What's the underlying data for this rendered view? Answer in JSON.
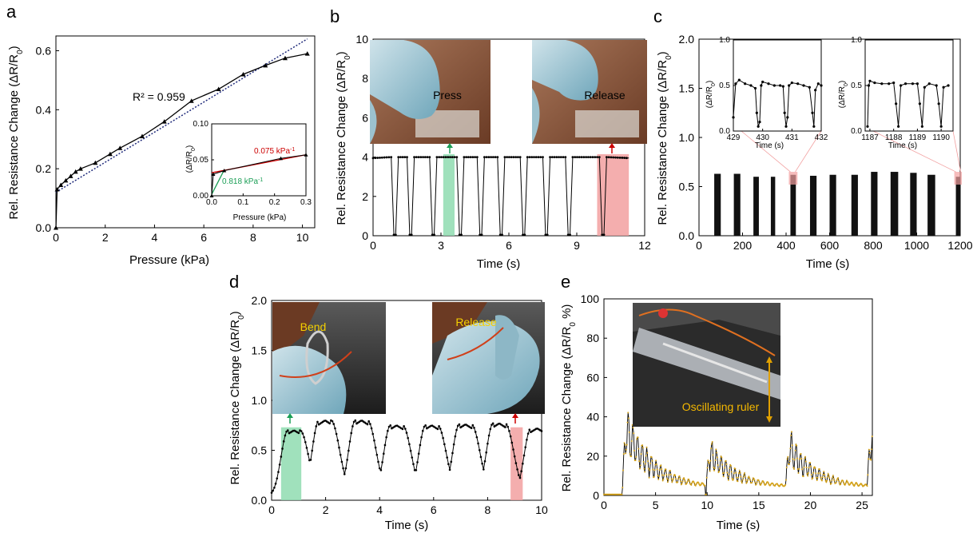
{
  "panel_labels": [
    "a",
    "b",
    "c",
    "d",
    "e"
  ],
  "photo_icons": [
    "finger-press-photo",
    "finger-release-photo",
    "finger-bend-photo",
    "finger-release-bent-photo",
    "oscillating-ruler-photo"
  ],
  "colors": {
    "green_highlight": "#8fdcb0",
    "red_highlight": "#f2a0a0",
    "fit_dotted": "#1f2a7a",
    "red_fit": "#cc0000",
    "green_fit": "#1a9e55",
    "series_e_marker": "#d4a21a",
    "annotation_yellow": "#f5d000",
    "ruler_arrow": "#e0a000"
  },
  "chart_data": [
    {
      "id": "a",
      "type": "line",
      "xlabel": "Pressure (kPa)",
      "ylabel": "Rel. Resistance Change (ΔR/R",
      "ylabel_sub": "0",
      "ylabel_end": ")",
      "xlim": [
        0,
        10.5
      ],
      "ylim": [
        0,
        0.65
      ],
      "xticks": [
        0,
        2,
        4,
        6,
        8,
        10
      ],
      "yticks": [
        0.0,
        0.2,
        0.4,
        0.6
      ],
      "ytick_labels": [
        "0.0",
        "0.2",
        "0.4",
        "0.6"
      ],
      "annotation": "R² = 0.959",
      "x": [
        0,
        0.05,
        0.2,
        0.4,
        0.6,
        0.8,
        1.0,
        1.6,
        2.2,
        2.6,
        3.5,
        4.4,
        5.5,
        6.6,
        7.6,
        8.5,
        9.3,
        10.2
      ],
      "y": [
        0.0,
        0.13,
        0.145,
        0.16,
        0.175,
        0.19,
        0.2,
        0.22,
        0.25,
        0.27,
        0.31,
        0.36,
        0.43,
        0.47,
        0.52,
        0.55,
        0.575,
        0.59
      ],
      "fit_line": {
        "x": [
          0,
          10.2
        ],
        "y": [
          0.12,
          0.64
        ]
      },
      "inset": {
        "xlabel": "Pressure (kPa)",
        "ylabel": "(ΔR/R",
        "ylabel_sub": "0",
        "ylabel_end": ")",
        "xlim": [
          0,
          0.3
        ],
        "ylim": [
          0,
          0.1
        ],
        "xticks": [
          0.0,
          0.1,
          0.2,
          0.3
        ],
        "xtick_labels": [
          "0.0",
          "0.1",
          "0.2",
          "0.3"
        ],
        "yticks": [
          0.0,
          0.05,
          0.1
        ],
        "ytick_labels": [
          "0.00",
          "0.05",
          "0.10"
        ],
        "x": [
          0,
          0.005,
          0.04,
          0.22,
          0.3
        ],
        "y": [
          0.0,
          0.03,
          0.035,
          0.052,
          0.057
        ],
        "red_fit": {
          "x": [
            0,
            0.3
          ],
          "y": [
            0.032,
            0.057
          ],
          "label": "0.075 kPa",
          "label_sup": "-1"
        },
        "green_fit": {
          "x": [
            0,
            0.04
          ],
          "y": [
            0.002,
            0.036
          ],
          "label": "0.818 kPa",
          "label_sup": "-1"
        }
      }
    },
    {
      "id": "b",
      "type": "line",
      "xlabel": "Time (s)",
      "ylabel": "Rel. Resistance Change (ΔR/R",
      "ylabel_sub": "0",
      "ylabel_end": ")",
      "xlim": [
        0,
        12
      ],
      "ylim": [
        0,
        10
      ],
      "xticks": [
        0,
        3,
        6,
        9,
        12
      ],
      "yticks": [
        0,
        2,
        4,
        6,
        8,
        10
      ],
      "high": 3.95,
      "low": 0.05,
      "segments": [
        [
          0.8,
          4.0,
          0.05
        ],
        [
          1.0,
          0.05,
          4.0
        ],
        [
          1.5,
          4.0,
          0.05
        ],
        [
          1.7,
          0.05,
          4.0
        ],
        [
          2.5,
          4.0,
          0.05
        ],
        [
          2.7,
          0.05,
          4.0
        ],
        [
          3.7,
          4.0,
          0.05
        ],
        [
          3.9,
          0.05,
          4.0
        ],
        [
          4.6,
          4.0,
          0.05
        ],
        [
          4.8,
          0.05,
          4.0
        ],
        [
          5.5,
          4.0,
          0.05
        ],
        [
          5.7,
          0.05,
          4.0
        ],
        [
          6.5,
          4.0,
          0.05
        ],
        [
          6.7,
          0.05,
          4.0
        ],
        [
          7.5,
          4.0,
          0.05
        ],
        [
          7.7,
          0.05,
          4.0
        ],
        [
          8.5,
          4.0,
          0.05
        ],
        [
          8.7,
          0.05,
          4.0
        ],
        [
          10.0,
          4.0,
          0.05
        ],
        [
          10.2,
          0.05,
          4.0
        ]
      ],
      "x_end": 11.3,
      "highlights": [
        {
          "x0": 3.1,
          "x1": 3.6,
          "color": "green"
        },
        {
          "x0": 9.9,
          "x1": 11.3,
          "color": "red"
        }
      ],
      "photo_labels": [
        "Press",
        "Release"
      ]
    },
    {
      "id": "c",
      "type": "scatter",
      "xlabel": "Time (s)",
      "ylabel": "Rel. Resistance Change (ΔR/R",
      "ylabel_sub": "0",
      "ylabel_end": ")",
      "xlim": [
        0,
        1200
      ],
      "ylim": [
        0,
        2
      ],
      "xticks": [
        0,
        200,
        400,
        600,
        800,
        1000,
        1200
      ],
      "yticks": [
        0.0,
        0.5,
        1.0,
        1.5,
        2.0
      ],
      "ytick_labels": [
        "0.0",
        "0.5",
        "1.0",
        "1.5",
        "2.0"
      ],
      "bursts": [
        {
          "x0": 70,
          "x1": 100,
          "top": 0.63
        },
        {
          "x0": 160,
          "x1": 190,
          "top": 0.63
        },
        {
          "x0": 250,
          "x1": 275,
          "top": 0.6
        },
        {
          "x0": 330,
          "x1": 350,
          "top": 0.6
        },
        {
          "x0": 420,
          "x1": 445,
          "top": 0.62
        },
        {
          "x0": 510,
          "x1": 540,
          "top": 0.61
        },
        {
          "x0": 600,
          "x1": 630,
          "top": 0.62
        },
        {
          "x0": 700,
          "x1": 730,
          "top": 0.62
        },
        {
          "x0": 790,
          "x1": 820,
          "top": 0.65
        },
        {
          "x0": 880,
          "x1": 915,
          "top": 0.65
        },
        {
          "x0": 970,
          "x1": 1000,
          "top": 0.64
        },
        {
          "x0": 1050,
          "x1": 1085,
          "top": 0.62
        },
        {
          "x0": 1180,
          "x1": 1200,
          "top": 0.6
        }
      ],
      "highlights": [
        {
          "x0": 420,
          "x1": 445
        },
        {
          "x0": 1180,
          "x1": 1200
        }
      ],
      "insets": [
        {
          "xlabel": "Time (s)",
          "ylabel": "(ΔR/R",
          "ylabel_sub": "0",
          "ylabel_end": ")",
          "xlim": [
            429,
            432
          ],
          "ylim": [
            0,
            1
          ],
          "xticks": [
            429,
            430,
            431,
            432
          ],
          "yticks": [
            0.0,
            0.5,
            1.0
          ],
          "ytick_labels": [
            "0.0",
            "0.5",
            "1.0"
          ],
          "x": [
            429.0,
            429.08,
            429.2,
            429.4,
            429.6,
            429.75,
            429.8,
            429.85,
            429.9,
            429.95,
            430.0,
            430.2,
            430.4,
            430.6,
            430.7,
            430.75,
            430.8,
            430.85,
            430.9,
            431.0,
            431.2,
            431.4,
            431.6,
            431.7,
            431.75,
            431.8,
            431.9,
            432.0
          ],
          "y": [
            0.15,
            0.52,
            0.56,
            0.52,
            0.5,
            0.47,
            0.2,
            0.05,
            0.1,
            0.5,
            0.54,
            0.52,
            0.5,
            0.5,
            0.49,
            0.2,
            0.05,
            0.15,
            0.5,
            0.53,
            0.52,
            0.5,
            0.48,
            0.2,
            0.05,
            0.45,
            0.52,
            0.5
          ]
        },
        {
          "xlabel": "Time (s)",
          "ylabel": "(ΔR/R",
          "ylabel_sub": "0",
          "ylabel_end": ")",
          "xlim": [
            1186.8,
            1190.5
          ],
          "ylim": [
            0,
            1
          ],
          "xticks": [
            1187,
            1188,
            1189,
            1190
          ],
          "yticks": [
            0.0,
            0.5,
            1.0
          ],
          "ytick_labels": [
            "0.0",
            "0.5",
            "1.0"
          ],
          "x": [
            1186.9,
            1186.95,
            1187.0,
            1187.2,
            1187.5,
            1187.8,
            1188.0,
            1188.1,
            1188.2,
            1188.3,
            1188.5,
            1188.8,
            1189.0,
            1189.1,
            1189.2,
            1189.3,
            1189.5,
            1189.8,
            1189.9,
            1190.0,
            1190.1,
            1190.3
          ],
          "y": [
            0.05,
            0.5,
            0.55,
            0.53,
            0.52,
            0.52,
            0.53,
            0.3,
            0.05,
            0.5,
            0.52,
            0.52,
            0.52,
            0.3,
            0.05,
            0.48,
            0.52,
            0.5,
            0.3,
            0.05,
            0.48,
            0.5
          ]
        }
      ]
    },
    {
      "id": "d",
      "type": "line",
      "xlabel": "Time (s)",
      "ylabel": "Rel. Resistance Change (ΔR/R",
      "ylabel_sub": "0",
      "ylabel_end": ")",
      "xlim": [
        0,
        10
      ],
      "ylim": [
        0,
        2
      ],
      "xticks": [
        0,
        2,
        4,
        6,
        8,
        10
      ],
      "yticks": [
        0.0,
        0.5,
        1.0,
        1.5,
        2.0
      ],
      "ytick_labels": [
        "0.0",
        "0.5",
        "1.0",
        "1.5",
        "2.0"
      ],
      "peaks": [
        0.9,
        2.05,
        3.4,
        4.7,
        6.0,
        7.25,
        8.5,
        9.9
      ],
      "peak_values": [
        0.7,
        0.8,
        0.8,
        0.75,
        0.75,
        0.76,
        0.77,
        0.72
      ],
      "highlights": [
        {
          "x0": 0.35,
          "x1": 1.1,
          "color": "green"
        },
        {
          "x0": 8.85,
          "x1": 9.3,
          "color": "red"
        }
      ],
      "photo_labels": [
        "Bend",
        "Release"
      ]
    },
    {
      "id": "e",
      "type": "line",
      "xlabel": "Time (s)",
      "ylabel": "Rel. Resistance Change (ΔR/R",
      "ylabel_sub": "0",
      "ylabel_end": " %)",
      "xlim": [
        0,
        26
      ],
      "ylim": [
        0,
        100
      ],
      "xticks": [
        0,
        5,
        10,
        15,
        20,
        25
      ],
      "yticks": [
        0,
        20,
        40,
        60,
        80,
        100
      ],
      "events": [
        {
          "x": 1.8,
          "peak": 44
        },
        {
          "x": 9.9,
          "peak": 26
        },
        {
          "x": 17.6,
          "peak": 30
        },
        {
          "x": 25.5,
          "peak": 35
        }
      ],
      "photo_label": "Oscillating ruler"
    }
  ]
}
